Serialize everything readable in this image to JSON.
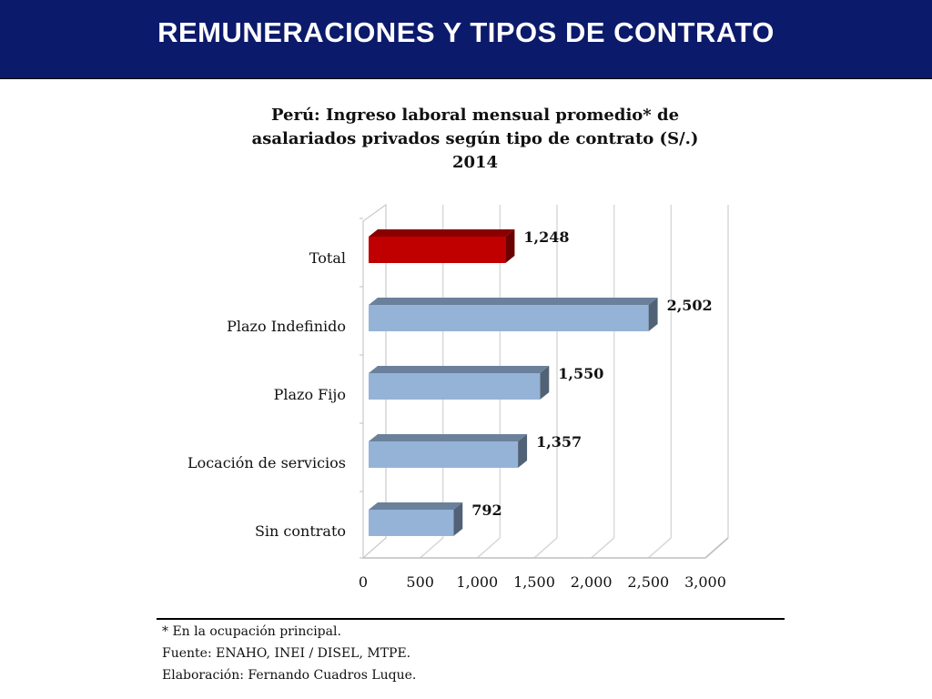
{
  "header": {
    "title": "REMUNERACIONES Y TIPOS DE CONTRATO"
  },
  "chart_data": {
    "type": "bar",
    "orientation": "horizontal",
    "title_lines": [
      "Perú: Ingreso laboral mensual promedio* de",
      "asalariados privados según tipo de contrato (S/.)",
      "2014"
    ],
    "categories": [
      "Total",
      "Plazo Indefinido",
      "Plazo Fijo",
      "Locación de servicios",
      "Sin contrato"
    ],
    "values": [
      1248,
      2502,
      1550,
      1357,
      792
    ],
    "value_labels": [
      "1,248",
      "2,502",
      "1,550",
      "1,357",
      "792"
    ],
    "bar_colors": [
      "#c00000",
      "#95b3d7",
      "#95b3d7",
      "#95b3d7",
      "#95b3d7"
    ],
    "x_ticks": [
      0,
      500,
      1000,
      1500,
      2000,
      2500,
      3000
    ],
    "x_tick_labels": [
      "0",
      "500",
      "1,000",
      "1,500",
      "2,000",
      "2,500",
      "3,000"
    ],
    "xlim": [
      0,
      3000
    ],
    "grid": "vertical",
    "legend": "none",
    "style": "3d"
  },
  "footnotes": {
    "note": "* En la ocupación principal.",
    "source": "Fuente: ENAHO, INEI / DISEL, MTPE.",
    "author": "Elaboración: Fernando Cuadros Luque."
  }
}
